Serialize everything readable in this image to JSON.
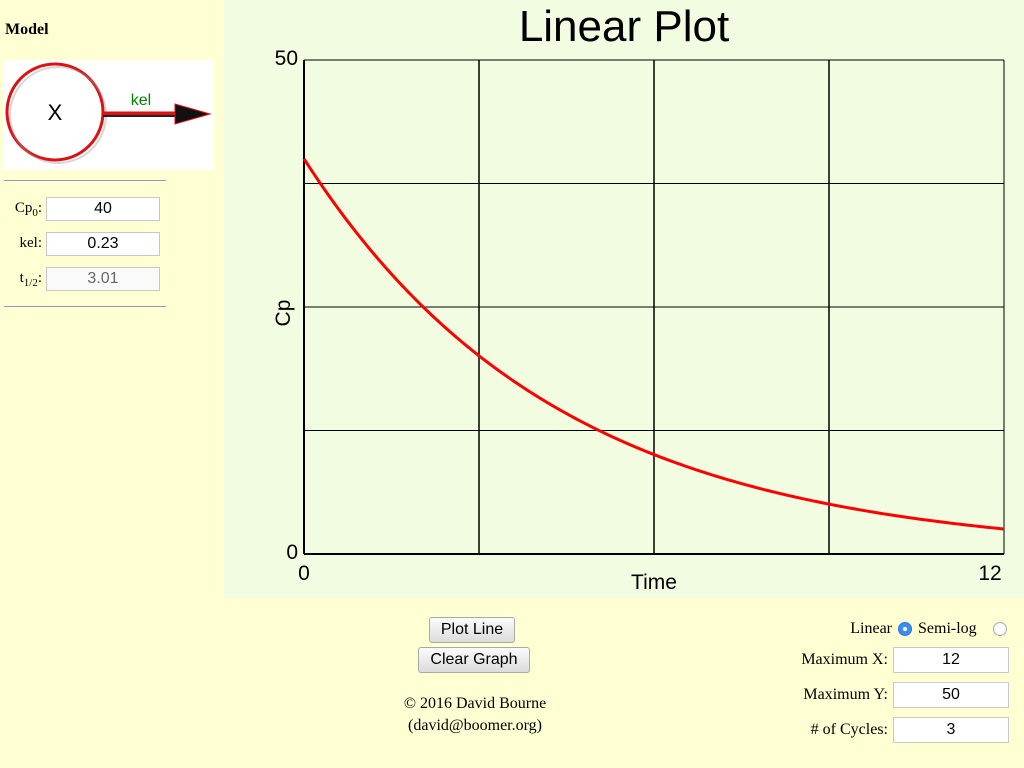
{
  "sidebar": {
    "model_title": "Model",
    "diagram": {
      "compartment_label": "X",
      "arrow_label": "kel"
    },
    "params": [
      {
        "label": "Cp",
        "sub": "0",
        "suffix": ":",
        "value": "40"
      },
      {
        "label": "kel",
        "sub": "",
        "suffix": ":",
        "value": "0.23"
      },
      {
        "label": "t",
        "sub": "1/2",
        "suffix": ":",
        "value": "3.01"
      }
    ]
  },
  "chart_data": {
    "type": "line",
    "title": "Linear Plot",
    "xlabel": "Time",
    "ylabel": "Cp",
    "xlim": [
      0,
      12
    ],
    "ylim": [
      0,
      50
    ],
    "x_tick_labels": [
      "0",
      "12"
    ],
    "y_tick_labels": [
      "0",
      "50"
    ],
    "grid": true,
    "series": [
      {
        "Cp0": 40,
        "kel": 0.23,
        "x": [
          0,
          1,
          2,
          3,
          4,
          5,
          6,
          7,
          8,
          9,
          10,
          11,
          12
        ],
        "y": [
          40,
          31.8,
          25.3,
          20.1,
          15.9,
          12.7,
          10.1,
          8.0,
          6.4,
          5.0,
          4.0,
          3.2,
          2.5
        ],
        "color": "#ff0000"
      }
    ]
  },
  "controls": {
    "plot_line_label": "Plot Line",
    "clear_graph_label": "Clear Graph",
    "copyright_line1": "© 2016 David Bourne",
    "copyright_line2": "(david@boomer.org)",
    "scale_linear_label": "Linear",
    "scale_semilog_label": "Semi-log",
    "scale_selected": "Linear",
    "max_x_label": "Maximum X:",
    "max_x_value": "12",
    "max_y_label": "Maximum Y:",
    "max_y_value": "50",
    "cycles_label": "# of Cycles:",
    "cycles_value": "3"
  },
  "colors": {
    "page_bg": "#ffffd4",
    "plot_bg": "#f1fce0",
    "curve": "#ff0000",
    "arrow_label": "#008000",
    "compartment_border": "#dd1111"
  }
}
